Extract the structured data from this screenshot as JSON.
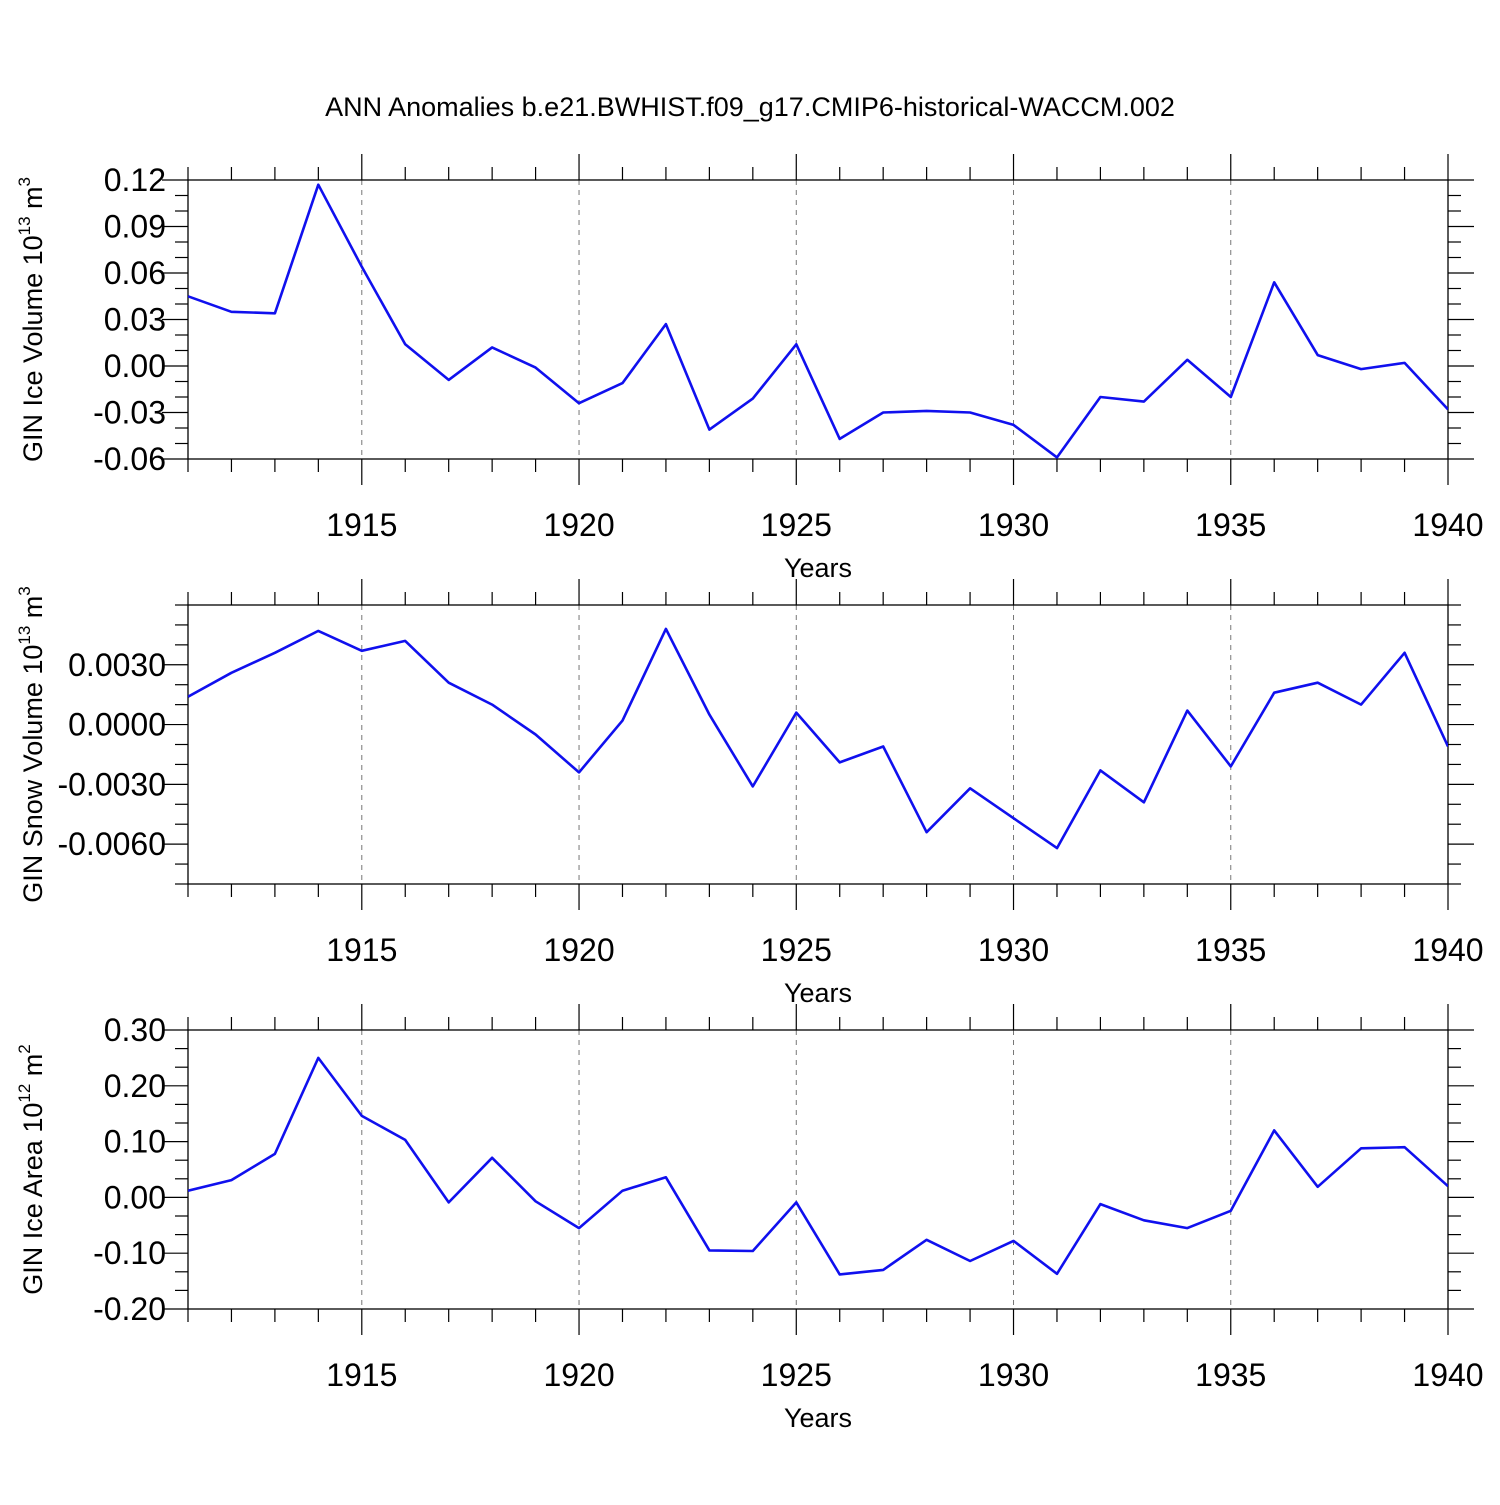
{
  "title": "ANN Anomalies b.e21.BWHIST.f09_g17.CMIP6-historical-WACCM.002",
  "colors": {
    "line": "#1010ee",
    "axis": "#000000",
    "grid": "#777777"
  },
  "chart_data": [
    {
      "type": "line",
      "ylabel_base": "GIN Ice Volume 10",
      "ylabel_exp": "13",
      "ylabel_unit": " m",
      "ylabel_unit_exp": "3",
      "xlabel": "Years",
      "xlim": [
        1911,
        1940
      ],
      "ylim": [
        -0.06,
        0.12
      ],
      "yticks": [
        "0.12",
        "0.09",
        "0.06",
        "0.03",
        "0.00",
        "-0.03",
        "-0.06"
      ],
      "yticks_values": [
        0.12,
        0.09,
        0.06,
        0.03,
        0.0,
        -0.03,
        -0.06
      ],
      "xticks": [
        "1915",
        "1920",
        "1925",
        "1930",
        "1935",
        "1940"
      ],
      "xticks_values": [
        1915,
        1920,
        1925,
        1930,
        1935,
        1940
      ],
      "x": [
        1911,
        1912,
        1913,
        1914,
        1915,
        1916,
        1917,
        1918,
        1919,
        1920,
        1921,
        1922,
        1923,
        1924,
        1925,
        1926,
        1927,
        1928,
        1929,
        1930,
        1931,
        1932,
        1933,
        1934,
        1935,
        1936,
        1937,
        1938,
        1939,
        1940
      ],
      "values": [
        0.045,
        0.035,
        0.034,
        0.117,
        0.064,
        0.014,
        -0.009,
        0.012,
        -0.001,
        -0.024,
        -0.011,
        0.027,
        -0.041,
        -0.021,
        0.014,
        -0.047,
        -0.03,
        -0.029,
        -0.03,
        -0.038,
        -0.059,
        -0.02,
        -0.023,
        0.004,
        -0.02,
        0.054,
        0.007,
        -0.002,
        0.002,
        -0.028
      ]
    },
    {
      "type": "line",
      "ylabel_base": "GIN Snow Volume 10",
      "ylabel_exp": "13",
      "ylabel_unit": " m",
      "ylabel_unit_exp": "3",
      "xlabel": "Years",
      "xlim": [
        1911,
        1940
      ],
      "ylim": [
        -0.008,
        0.006
      ],
      "yticks": [
        "0.0030",
        "0.0000",
        "-0.0030",
        "-0.0060"
      ],
      "yticks_values": [
        0.003,
        0.0,
        -0.003,
        -0.006
      ],
      "xticks": [
        "1915",
        "1920",
        "1925",
        "1930",
        "1935",
        "1940"
      ],
      "xticks_values": [
        1915,
        1920,
        1925,
        1930,
        1935,
        1940
      ],
      "x": [
        1911,
        1912,
        1913,
        1914,
        1915,
        1916,
        1917,
        1918,
        1919,
        1920,
        1921,
        1922,
        1923,
        1924,
        1925,
        1926,
        1927,
        1928,
        1929,
        1930,
        1931,
        1932,
        1933,
        1934,
        1935,
        1936,
        1937,
        1938,
        1939,
        1940
      ],
      "values": [
        0.0014,
        0.0026,
        0.0036,
        0.0047,
        0.0037,
        0.0042,
        0.0021,
        0.001,
        -0.0005,
        -0.0024,
        0.0002,
        0.0048,
        0.0005,
        -0.0031,
        0.0006,
        -0.0019,
        -0.0011,
        -0.0054,
        -0.0032,
        -0.0047,
        -0.0062,
        -0.0023,
        -0.0039,
        0.0007,
        -0.0021,
        0.0016,
        0.0021,
        0.001,
        0.0036,
        -0.0011
      ]
    },
    {
      "type": "line",
      "ylabel_base": "GIN Ice Area 10",
      "ylabel_exp": "12",
      "ylabel_unit": " m",
      "ylabel_unit_exp": "2",
      "xlabel": "Years",
      "xlim": [
        1911,
        1940
      ],
      "ylim": [
        -0.2,
        0.3
      ],
      "yticks": [
        "0.30",
        "0.20",
        "0.10",
        "0.00",
        "-0.10",
        "-0.20"
      ],
      "yticks_values": [
        0.3,
        0.2,
        0.1,
        0.0,
        -0.1,
        -0.2
      ],
      "xticks": [
        "1915",
        "1920",
        "1925",
        "1930",
        "1935",
        "1940"
      ],
      "xticks_values": [
        1915,
        1920,
        1925,
        1930,
        1935,
        1940
      ],
      "x": [
        1911,
        1912,
        1913,
        1914,
        1915,
        1916,
        1917,
        1918,
        1919,
        1920,
        1921,
        1922,
        1923,
        1924,
        1925,
        1926,
        1927,
        1928,
        1929,
        1930,
        1931,
        1932,
        1933,
        1934,
        1935,
        1936,
        1937,
        1938,
        1939,
        1940
      ],
      "values": [
        0.012,
        0.031,
        0.078,
        0.25,
        0.146,
        0.103,
        -0.009,
        0.071,
        -0.007,
        -0.055,
        0.012,
        0.036,
        -0.095,
        -0.096,
        -0.009,
        -0.138,
        -0.13,
        -0.076,
        -0.114,
        -0.078,
        -0.137,
        -0.012,
        -0.041,
        -0.055,
        -0.024,
        0.12,
        0.019,
        0.088,
        0.09,
        0.02
      ]
    }
  ]
}
